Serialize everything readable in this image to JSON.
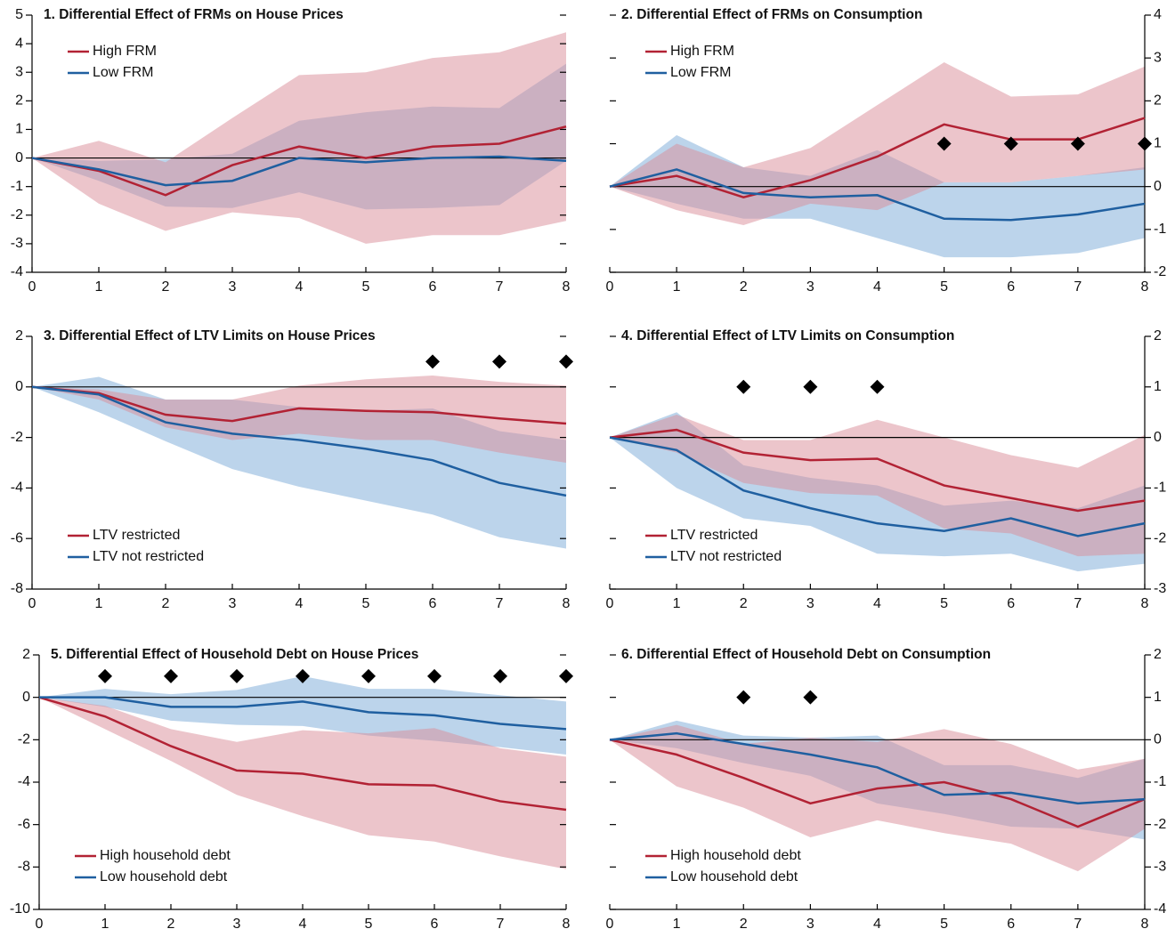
{
  "chart_data": [
    {
      "type": "line",
      "title": "1. Differential Effect of FRMs on House Prices",
      "x": [
        0,
        1,
        2,
        3,
        4,
        5,
        6,
        7,
        8
      ],
      "xlim": [
        0,
        8
      ],
      "xticks": [
        0,
        1,
        2,
        3,
        4,
        5,
        6,
        7,
        8
      ],
      "ylim": [
        -4,
        5
      ],
      "yticks": [
        -4,
        -3,
        -2,
        -1,
        0,
        1,
        2,
        3,
        4,
        5
      ],
      "y_axis_side": "left",
      "legend": "upper left",
      "series": [
        {
          "name": "Low FRM",
          "color": "#1f5fa0",
          "band_color": "#9fc2e2",
          "values": [
            0,
            -0.4,
            -0.95,
            -0.8,
            0,
            -0.15,
            0,
            0.05,
            -0.1
          ],
          "lower": [
            0,
            -0.8,
            -1.7,
            -1.75,
            -1.2,
            -1.8,
            -1.75,
            -1.65,
            -0.1
          ],
          "upper": [
            0,
            -0.1,
            -0.05,
            0.15,
            1.3,
            1.6,
            1.8,
            1.75,
            3.3
          ]
        },
        {
          "name": "High FRM",
          "color": "#b22234",
          "band_color": "#d98c98",
          "values": [
            0,
            -0.45,
            -1.3,
            -0.25,
            0.4,
            0,
            0.4,
            0.5,
            1.1
          ],
          "lower": [
            0,
            -1.6,
            -2.55,
            -1.9,
            -2.1,
            -3.0,
            -2.7,
            -2.7,
            -2.2
          ],
          "upper": [
            0,
            0.6,
            -0.15,
            1.4,
            2.9,
            3.0,
            3.5,
            3.7,
            4.4
          ]
        }
      ]
    },
    {
      "type": "line",
      "title": "2. Differential Effect of FRMs on Consumption",
      "x": [
        0,
        1,
        2,
        3,
        4,
        5,
        6,
        7,
        8
      ],
      "xlim": [
        0,
        8
      ],
      "xticks": [
        0,
        1,
        2,
        3,
        4,
        5,
        6,
        7,
        8
      ],
      "ylim": [
        -2,
        4
      ],
      "yticks": [
        -2,
        -1,
        0,
        1,
        2,
        3,
        4
      ],
      "y_axis_side": "right",
      "legend": "upper left",
      "series": [
        {
          "name": "Low FRM",
          "color": "#1f5fa0",
          "band_color": "#9fc2e2",
          "values": [
            0,
            0.4,
            -0.15,
            -0.25,
            -0.2,
            -0.75,
            -0.78,
            -0.65,
            -0.4
          ],
          "lower": [
            0,
            -0.4,
            -0.75,
            -0.75,
            -1.2,
            -1.65,
            -1.65,
            -1.55,
            -1.2
          ],
          "upper": [
            0,
            1.2,
            0.45,
            0.25,
            0.85,
            0.1,
            0.1,
            0.25,
            0.45
          ]
        },
        {
          "name": "High FRM",
          "color": "#b22234",
          "band_color": "#d98c98",
          "values": [
            0,
            0.25,
            -0.25,
            0.15,
            0.7,
            1.45,
            1.1,
            1.1,
            1.6
          ],
          "lower": [
            0,
            -0.55,
            -0.9,
            -0.4,
            -0.55,
            0.1,
            0.1,
            0.25,
            0.4
          ],
          "upper": [
            0,
            1.0,
            0.45,
            0.9,
            1.9,
            2.9,
            2.1,
            2.15,
            2.8
          ]
        }
      ],
      "markers": {
        "x": [
          5,
          6,
          7,
          8
        ],
        "y": [
          1,
          1,
          1,
          1
        ]
      }
    },
    {
      "type": "line",
      "title": "3. Differential Effect of LTV Limits on House Prices",
      "x": [
        0,
        1,
        2,
        3,
        4,
        5,
        6,
        7,
        8
      ],
      "xlim": [
        0,
        8
      ],
      "xticks": [
        0,
        1,
        2,
        3,
        4,
        5,
        6,
        7,
        8
      ],
      "ylim": [
        -8,
        2
      ],
      "yticks": [
        -8,
        -6,
        -4,
        -2,
        0,
        2
      ],
      "y_axis_side": "left",
      "legend": "lower left",
      "series": [
        {
          "name": "LTV not restricted",
          "color": "#1f5fa0",
          "band_color": "#9fc2e2",
          "values": [
            0,
            -0.3,
            -1.4,
            -1.85,
            -2.1,
            -2.45,
            -2.9,
            -3.8,
            -4.3
          ],
          "lower": [
            0,
            -1.0,
            -2.15,
            -3.25,
            -3.95,
            -4.5,
            -5.05,
            -5.95,
            -6.4
          ],
          "upper": [
            0,
            0.4,
            -0.5,
            -0.5,
            -0.8,
            -0.95,
            -0.85,
            -1.75,
            -2.1
          ]
        },
        {
          "name": "LTV restricted",
          "color": "#b22234",
          "band_color": "#d98c98",
          "values": [
            0,
            -0.25,
            -1.1,
            -1.35,
            -0.85,
            -0.95,
            -1.0,
            -1.25,
            -1.45
          ],
          "lower": [
            0,
            -0.5,
            -1.6,
            -2.1,
            -1.85,
            -2.1,
            -2.1,
            -2.6,
            -3.0
          ],
          "upper": [
            0,
            -0.1,
            -0.5,
            -0.5,
            0.05,
            0.3,
            0.45,
            0.2,
            0.05
          ]
        }
      ],
      "markers": {
        "x": [
          6,
          7,
          8
        ],
        "y": [
          1,
          1,
          1
        ]
      }
    },
    {
      "type": "line",
      "title": "4. Differential Effect of LTV Limits on Consumption",
      "x": [
        0,
        1,
        2,
        3,
        4,
        5,
        6,
        7,
        8
      ],
      "xlim": [
        0,
        8
      ],
      "xticks": [
        0,
        1,
        2,
        3,
        4,
        5,
        6,
        7,
        8
      ],
      "ylim": [
        -3,
        2
      ],
      "yticks": [
        -3,
        -2,
        -1,
        0,
        1,
        2
      ],
      "y_axis_side": "right",
      "legend": "lower left",
      "series": [
        {
          "name": "LTV not restricted",
          "color": "#1f5fa0",
          "band_color": "#9fc2e2",
          "values": [
            0,
            -0.25,
            -1.05,
            -1.4,
            -1.7,
            -1.85,
            -1.6,
            -1.95,
            -1.7
          ],
          "lower": [
            0,
            -1.0,
            -1.6,
            -1.75,
            -2.3,
            -2.35,
            -2.3,
            -2.65,
            -2.5
          ],
          "upper": [
            0,
            0.5,
            -0.55,
            -0.8,
            -0.95,
            -1.35,
            -1.25,
            -1.4,
            -0.95
          ]
        },
        {
          "name": "LTV restricted",
          "color": "#b22234",
          "band_color": "#d98c98",
          "values": [
            0,
            0.15,
            -0.3,
            -0.45,
            -0.42,
            -0.95,
            -1.2,
            -1.45,
            -1.25
          ],
          "lower": [
            0,
            -0.3,
            -0.9,
            -1.1,
            -1.15,
            -1.8,
            -1.9,
            -2.35,
            -2.3
          ],
          "upper": [
            0,
            0.45,
            -0.05,
            -0.05,
            0.35,
            0,
            -0.35,
            -0.6,
            0.05
          ]
        }
      ],
      "markers": {
        "x": [
          2,
          3,
          4
        ],
        "y": [
          1,
          1,
          1
        ]
      }
    },
    {
      "type": "line",
      "title": "5. Differential Effect of Household Debt on House Prices",
      "x": [
        0,
        1,
        2,
        3,
        4,
        5,
        6,
        7,
        8
      ],
      "xlim": [
        0,
        8
      ],
      "xticks": [
        0,
        1,
        2,
        3,
        4,
        5,
        6,
        7,
        8
      ],
      "ylim": [
        -10,
        2
      ],
      "yticks": [
        -10,
        -8,
        -6,
        -4,
        -2,
        0,
        2
      ],
      "y_axis_side": "left",
      "legend": "lower left",
      "series": [
        {
          "name": "Low household debt",
          "color": "#1f5fa0",
          "band_color": "#9fc2e2",
          "values": [
            0,
            0,
            -0.45,
            -0.45,
            -0.2,
            -0.7,
            -0.85,
            -1.25,
            -1.5
          ],
          "lower": [
            0,
            -0.45,
            -1.1,
            -1.3,
            -1.35,
            -1.8,
            -2.05,
            -2.35,
            -2.7
          ],
          "upper": [
            0,
            0.4,
            0.15,
            0.35,
            1.0,
            0.4,
            0.4,
            0.1,
            -0.2
          ]
        },
        {
          "name": "High household debt",
          "color": "#b22234",
          "band_color": "#d98c98",
          "values": [
            0,
            -0.9,
            -2.3,
            -3.45,
            -3.6,
            -4.1,
            -4.15,
            -4.9,
            -5.3
          ],
          "lower": [
            0,
            -1.5,
            -3.0,
            -4.6,
            -5.6,
            -6.5,
            -6.8,
            -7.5,
            -8.1
          ],
          "upper": [
            0,
            -0.4,
            -1.5,
            -2.1,
            -1.55,
            -1.7,
            -1.45,
            -2.4,
            -2.8
          ]
        }
      ],
      "markers": {
        "x": [
          1,
          2,
          3,
          4,
          5,
          6,
          7,
          8
        ],
        "y": [
          1,
          1,
          1,
          1,
          1,
          1,
          1,
          1
        ]
      }
    },
    {
      "type": "line",
      "title": "6. Differential Effect of Household Debt on Consumption",
      "x": [
        0,
        1,
        2,
        3,
        4,
        5,
        6,
        7,
        8
      ],
      "xlim": [
        0,
        8
      ],
      "xticks": [
        0,
        1,
        2,
        3,
        4,
        5,
        6,
        7,
        8
      ],
      "ylim": [
        -4,
        2
      ],
      "yticks": [
        -4,
        -3,
        -2,
        -1,
        0,
        1,
        2
      ],
      "y_axis_side": "right",
      "legend": "lower left",
      "series": [
        {
          "name": "Low household debt",
          "color": "#1f5fa0",
          "band_color": "#9fc2e2",
          "values": [
            0,
            0.15,
            -0.1,
            -0.35,
            -0.65,
            -1.3,
            -1.25,
            -1.5,
            -1.4
          ],
          "lower": [
            0,
            -0.2,
            -0.55,
            -0.85,
            -1.5,
            -1.75,
            -2.05,
            -2.1,
            -2.35
          ],
          "upper": [
            0,
            0.45,
            0.1,
            0.05,
            0.1,
            -0.6,
            -0.6,
            -0.9,
            -0.45
          ]
        },
        {
          "name": "High household debt",
          "color": "#b22234",
          "band_color": "#d98c98",
          "values": [
            0,
            -0.35,
            -0.9,
            -1.5,
            -1.15,
            -1.0,
            -1.4,
            -2.05,
            -1.4
          ],
          "lower": [
            0,
            -1.1,
            -1.6,
            -2.3,
            -1.9,
            -2.2,
            -2.45,
            -3.1,
            -2.1
          ],
          "upper": [
            0,
            0.35,
            -0.1,
            0.05,
            -0.05,
            0.25,
            -0.1,
            -0.7,
            -0.45
          ]
        }
      ],
      "markers": {
        "x": [
          2,
          3
        ],
        "y": [
          1,
          1
        ]
      }
    }
  ]
}
